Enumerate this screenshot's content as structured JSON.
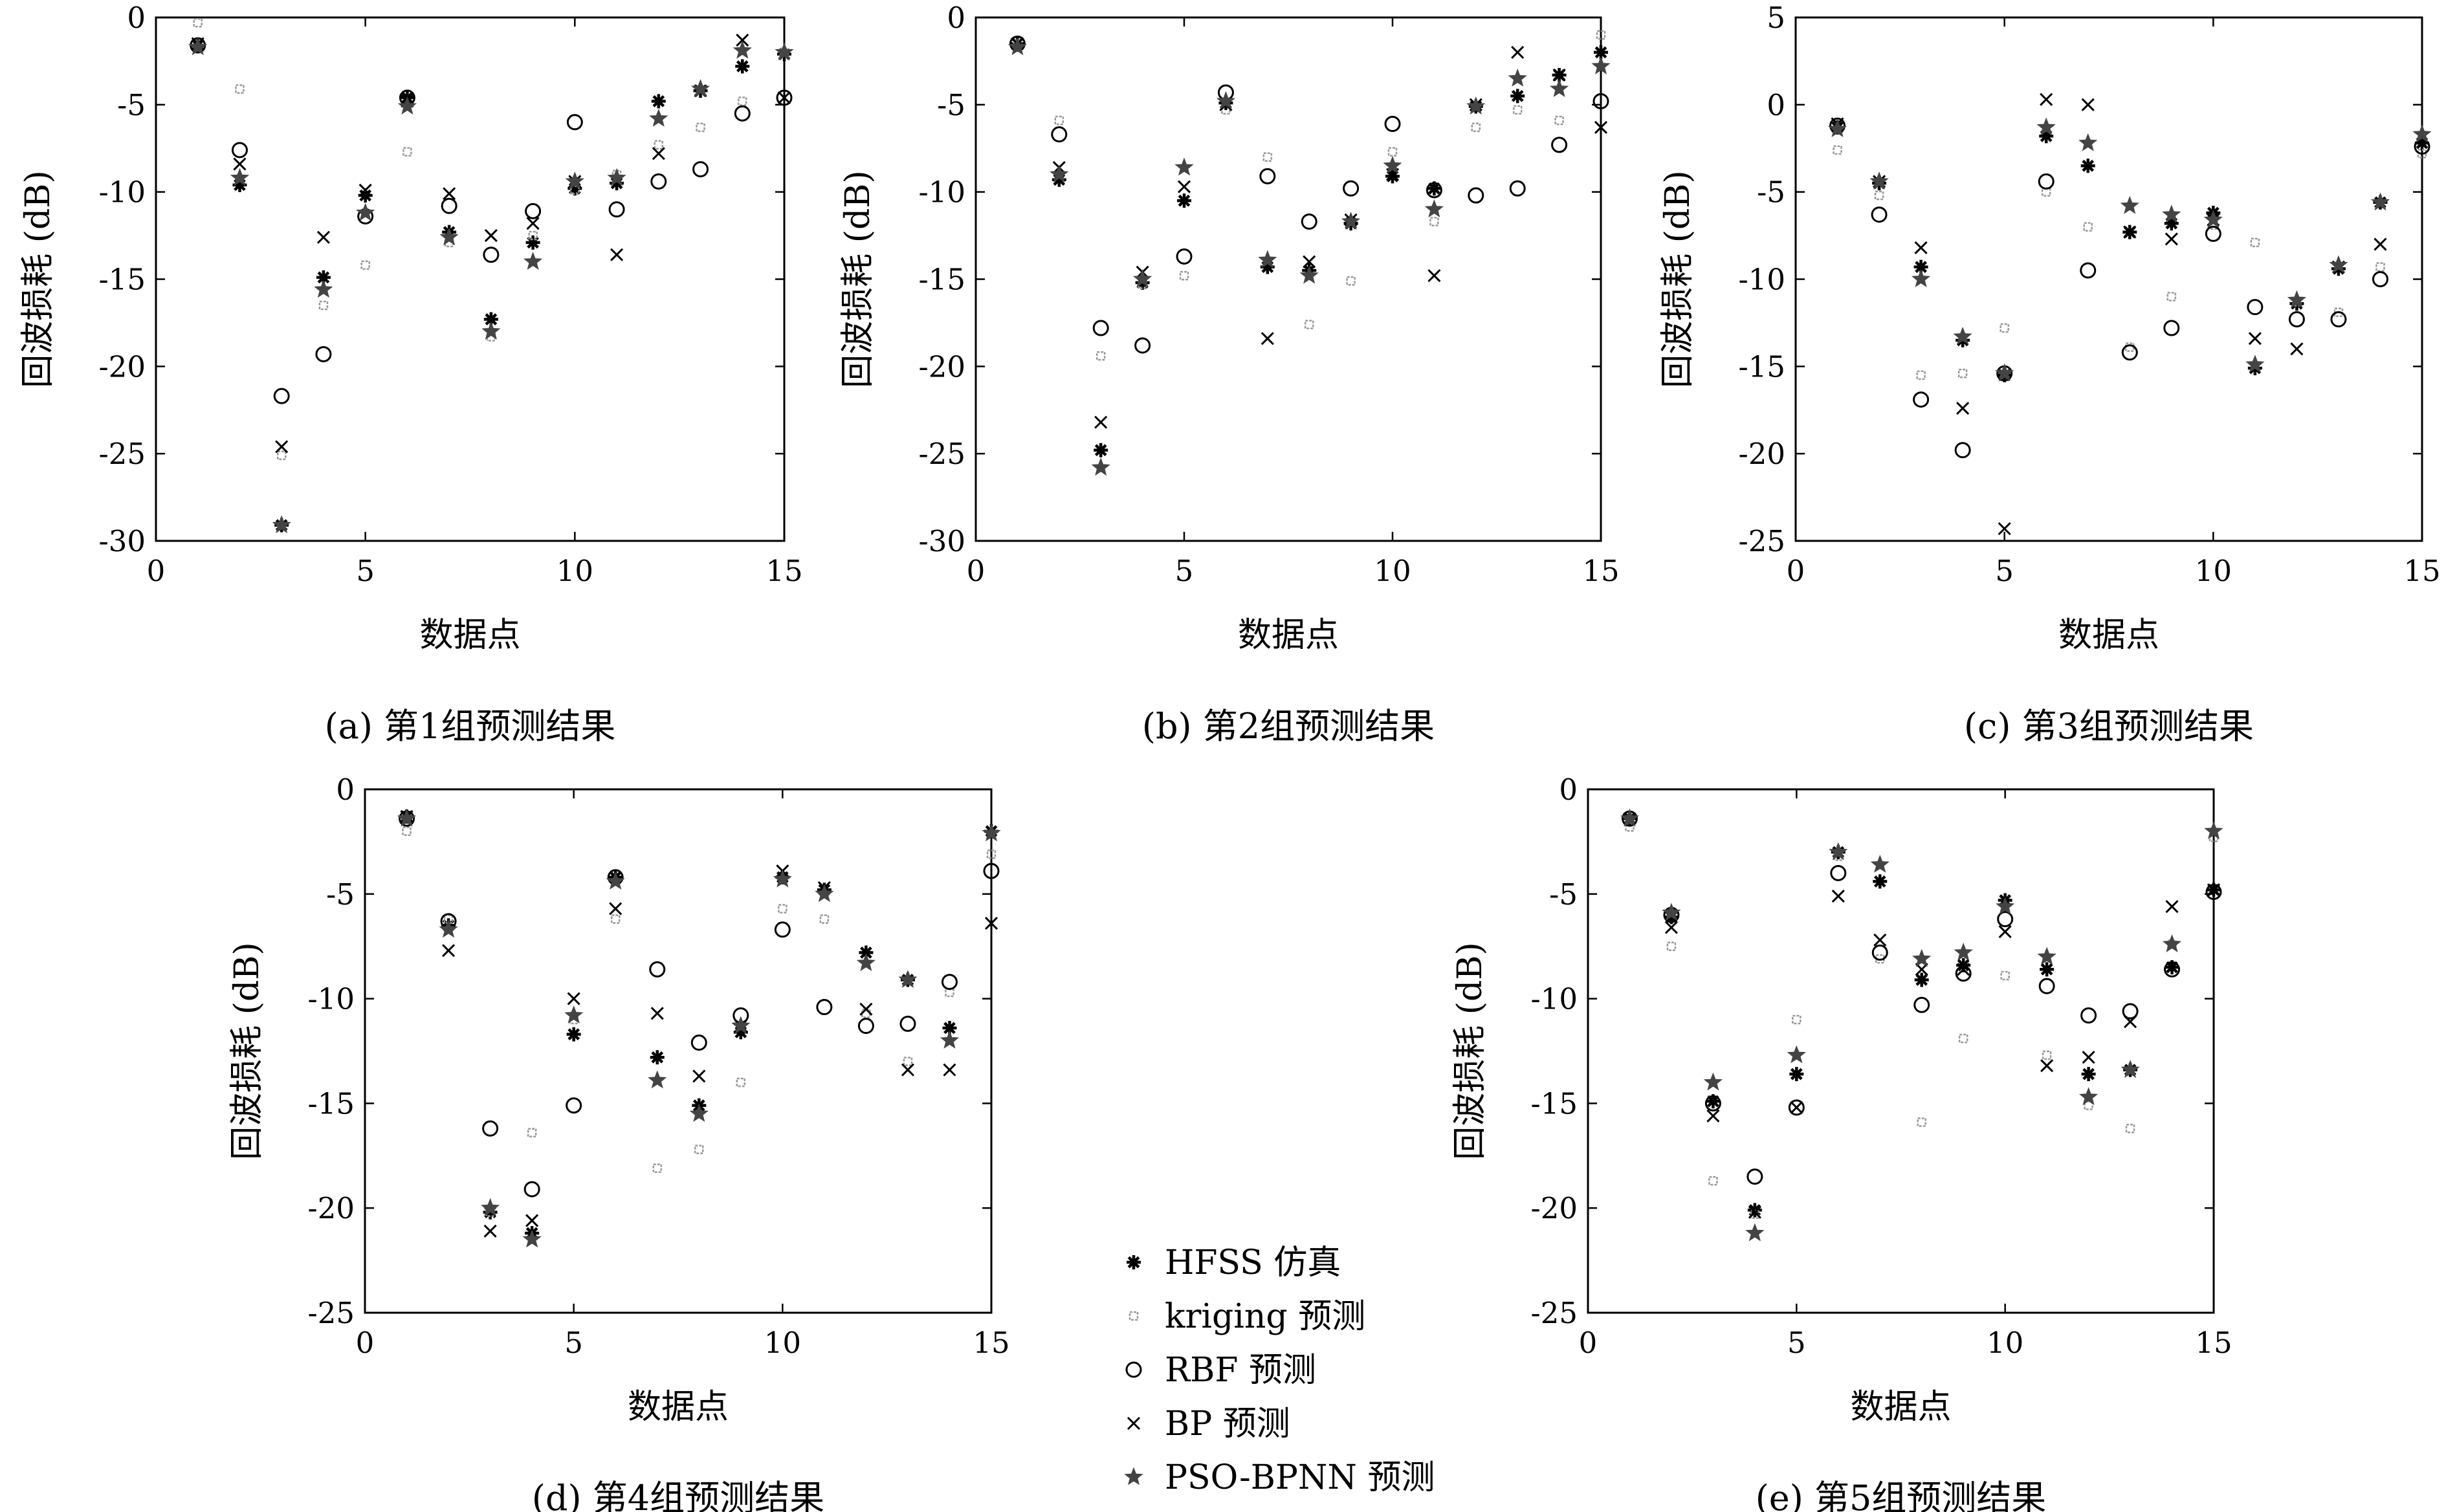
{
  "chart_data": [
    {
      "type": "scatter",
      "caption": "(a) 第1组预测结果",
      "xlabel": "数据点",
      "ylabel": "回波损耗 (dB)",
      "xlim": [
        0,
        15
      ],
      "ylim": [
        -30,
        0
      ],
      "xticks": [
        "0",
        "5",
        "10",
        "15"
      ],
      "yticks": [
        "-30",
        "-25",
        "-20",
        "-15",
        "-10",
        "-5",
        "0"
      ],
      "series": [
        {
          "name": "HFSS 仿真",
          "x": [
            1,
            2,
            3,
            4,
            5,
            6,
            7,
            8,
            9,
            10,
            11,
            12,
            13,
            14,
            15
          ],
          "y": [
            -1.6,
            -9.6,
            -29.1,
            -14.9,
            -10.2,
            -4.6,
            -12.3,
            -17.3,
            -12.9,
            -9.8,
            -9.5,
            -4.8,
            -4.2,
            -2.8,
            -2.1
          ]
        },
        {
          "name": "kriging 预测",
          "x": [
            1,
            2,
            3,
            4,
            5,
            6,
            7,
            8,
            9,
            10,
            11,
            12,
            13,
            14,
            15
          ],
          "y": [
            -0.3,
            -4.1,
            -25.1,
            -16.5,
            -14.2,
            -7.7,
            -12.9,
            -18.3,
            -12.5,
            -9.9,
            -9.0,
            -7.3,
            -6.3,
            -4.8,
            -2.0
          ]
        },
        {
          "name": "RBF 预测",
          "x": [
            1,
            2,
            3,
            4,
            5,
            6,
            7,
            8,
            9,
            10,
            11,
            12,
            13,
            14,
            15
          ],
          "y": [
            -1.6,
            -7.6,
            -21.7,
            -19.3,
            -11.4,
            -4.6,
            -10.8,
            -13.6,
            -11.1,
            -6.0,
            -11.0,
            -9.4,
            -8.7,
            -5.5,
            -4.6
          ]
        },
        {
          "name": "BP 预测",
          "x": [
            1,
            2,
            3,
            4,
            5,
            6,
            7,
            8,
            9,
            10,
            11,
            12,
            13,
            14,
            15
          ],
          "y": [
            -1.5,
            -8.4,
            -24.6,
            -12.6,
            -9.9,
            -4.8,
            -10.1,
            -12.5,
            -11.8,
            -9.4,
            -13.6,
            -7.8,
            -4.2,
            -1.3,
            -4.6
          ]
        },
        {
          "name": "PSO-BPNN 预测",
          "x": [
            1,
            2,
            3,
            4,
            5,
            6,
            7,
            8,
            9,
            10,
            11,
            12,
            13,
            14,
            15
          ],
          "y": [
            -1.7,
            -9.2,
            -29.1,
            -15.6,
            -11.2,
            -5.1,
            -12.6,
            -18.0,
            -14.0,
            -9.4,
            -9.2,
            -5.8,
            -4.1,
            -1.9,
            -2.0
          ]
        }
      ]
    },
    {
      "type": "scatter",
      "caption": "(b) 第2组预测结果",
      "xlabel": "数据点",
      "ylabel": "回波损耗 (dB)",
      "xlim": [
        0,
        15
      ],
      "ylim": [
        -30,
        0
      ],
      "xticks": [
        "0",
        "5",
        "10",
        "15"
      ],
      "yticks": [
        "-30",
        "-25",
        "-20",
        "-15",
        "-10",
        "-5",
        "0"
      ],
      "series": [
        {
          "name": "HFSS 仿真",
          "x": [
            1,
            2,
            3,
            4,
            5,
            6,
            7,
            8,
            9,
            10,
            11,
            12,
            13,
            14,
            15
          ],
          "y": [
            -1.5,
            -9.3,
            -24.8,
            -15.2,
            -10.5,
            -4.9,
            -14.3,
            -14.5,
            -11.8,
            -9.1,
            -9.8,
            -5.1,
            -4.5,
            -3.3,
            -2.0
          ]
        },
        {
          "name": "kriging 预测",
          "x": [
            1,
            2,
            3,
            4,
            5,
            6,
            7,
            8,
            9,
            10,
            11,
            12,
            13,
            14,
            15
          ],
          "y": [
            -1.5,
            -5.9,
            -19.4,
            -15.3,
            -14.8,
            -5.3,
            -8.0,
            -17.6,
            -15.1,
            -7.7,
            -11.7,
            -6.3,
            -5.3,
            -5.9,
            -1.0
          ]
        },
        {
          "name": "RBF 预测",
          "x": [
            1,
            2,
            3,
            4,
            5,
            6,
            7,
            8,
            9,
            10,
            11,
            12,
            13,
            14,
            15
          ],
          "y": [
            -1.5,
            -6.7,
            -17.8,
            -18.8,
            -13.7,
            -4.3,
            -9.1,
            -11.7,
            -9.8,
            -6.1,
            -9.9,
            -10.2,
            -9.8,
            -7.3,
            -4.8
          ]
        },
        {
          "name": "BP 预测",
          "x": [
            1,
            2,
            3,
            4,
            5,
            6,
            7,
            8,
            9,
            10,
            11,
            12,
            13,
            14,
            15
          ],
          "y": [
            -1.5,
            -8.6,
            -23.2,
            -14.6,
            -9.7,
            -5.0,
            -18.4,
            -14.0,
            -11.6,
            -9.0,
            -14.8,
            -5.0,
            -2.0,
            -3.3,
            -6.3
          ]
        },
        {
          "name": "PSO-BPNN 预测",
          "x": [
            1,
            2,
            3,
            4,
            5,
            6,
            7,
            8,
            9,
            10,
            11,
            12,
            13,
            14,
            15
          ],
          "y": [
            -1.7,
            -9.0,
            -25.8,
            -15.0,
            -8.6,
            -4.8,
            -13.9,
            -14.8,
            -11.7,
            -8.5,
            -11.0,
            -5.1,
            -3.5,
            -4.1,
            -2.8
          ]
        }
      ]
    },
    {
      "type": "scatter",
      "caption": "(c) 第3组预测结果",
      "xlabel": "数据点",
      "ylabel": "回波损耗 (dB)",
      "xlim": [
        0,
        15
      ],
      "ylim": [
        -25,
        5
      ],
      "xticks": [
        "0",
        "5",
        "10",
        "15"
      ],
      "yticks": [
        "-25",
        "-20",
        "-15",
        "-10",
        "-5",
        "0",
        "5"
      ],
      "series": [
        {
          "name": "HFSS 仿真",
          "x": [
            1,
            2,
            3,
            4,
            5,
            6,
            7,
            8,
            9,
            10,
            11,
            12,
            13,
            14,
            15
          ],
          "y": [
            -1.3,
            -4.5,
            -9.3,
            -13.5,
            -15.5,
            -1.8,
            -3.5,
            -7.3,
            -6.8,
            -6.2,
            -15.1,
            -11.4,
            -9.4,
            -5.6,
            -2.2
          ]
        },
        {
          "name": "kriging 预测",
          "x": [
            1,
            2,
            3,
            4,
            5,
            6,
            7,
            8,
            9,
            10,
            11,
            12,
            13,
            14,
            15
          ],
          "y": [
            -2.6,
            -5.2,
            -15.5,
            -15.4,
            -12.8,
            -5.0,
            -7.0,
            -13.9,
            -11.0,
            -6.9,
            -7.9,
            -11.3,
            -11.9,
            -9.3,
            -2.8
          ]
        },
        {
          "name": "RBF 预测",
          "x": [
            1,
            2,
            3,
            4,
            5,
            6,
            7,
            8,
            9,
            10,
            11,
            12,
            13,
            14,
            15
          ],
          "y": [
            -1.2,
            -6.3,
            -16.9,
            -19.8,
            -15.4,
            -4.4,
            -9.5,
            -14.2,
            -12.8,
            -7.4,
            -11.6,
            -12.3,
            -12.3,
            -10.0,
            -2.4
          ]
        },
        {
          "name": "BP 预测",
          "x": [
            1,
            2,
            3,
            4,
            5,
            6,
            7,
            8,
            9,
            10,
            11,
            12,
            13,
            14,
            15
          ],
          "y": [
            -1.1,
            -4.4,
            -8.2,
            -17.4,
            -24.3,
            0.3,
            0.0,
            -7.3,
            -7.7,
            -6.6,
            -13.4,
            -14.0,
            -9.3,
            -8.0,
            -1.9
          ]
        },
        {
          "name": "PSO-BPNN 预测",
          "x": [
            1,
            2,
            3,
            4,
            5,
            6,
            7,
            8,
            9,
            10,
            11,
            12,
            13,
            14,
            15
          ],
          "y": [
            -1.4,
            -4.4,
            -10.0,
            -13.3,
            -15.4,
            -1.3,
            -2.2,
            -5.8,
            -6.3,
            -6.6,
            -14.9,
            -11.2,
            -9.2,
            -5.6,
            -1.7
          ]
        }
      ]
    },
    {
      "type": "scatter",
      "caption": "(d) 第4组预测结果",
      "xlabel": "数据点",
      "ylabel": "回波损耗 (dB)",
      "xlim": [
        0,
        15
      ],
      "ylim": [
        -25,
        0
      ],
      "xticks": [
        "0",
        "5",
        "10",
        "15"
      ],
      "yticks": [
        "-25",
        "-20",
        "-15",
        "-10",
        "-5",
        "0"
      ],
      "series": [
        {
          "name": "HFSS 仿真",
          "x": [
            1,
            2,
            3,
            4,
            5,
            6,
            7,
            8,
            9,
            10,
            11,
            12,
            13,
            14,
            15
          ],
          "y": [
            -1.3,
            -6.5,
            -20.2,
            -21.2,
            -11.7,
            -4.2,
            -12.8,
            -15.1,
            -11.6,
            -4.2,
            -4.8,
            -7.8,
            -9.1,
            -11.4,
            -2.0
          ]
        },
        {
          "name": "kriging 预测",
          "x": [
            1,
            2,
            3,
            4,
            5,
            6,
            7,
            8,
            9,
            10,
            11,
            12,
            13,
            14,
            15
          ],
          "y": [
            -2.0,
            -6.2,
            -20.2,
            -16.4,
            -11.0,
            -6.2,
            -18.1,
            -17.2,
            -14.0,
            -5.7,
            -6.2,
            -10.7,
            -13.0,
            -9.7,
            -3.1
          ]
        },
        {
          "name": "RBF 预测",
          "x": [
            1,
            2,
            3,
            4,
            5,
            6,
            7,
            8,
            9,
            10,
            11,
            12,
            13,
            14,
            15
          ],
          "y": [
            -1.4,
            -6.3,
            -16.2,
            -19.1,
            -15.1,
            -4.2,
            -8.6,
            -12.1,
            -10.8,
            -6.7,
            -10.4,
            -11.3,
            -11.2,
            -9.2,
            -3.9
          ]
        },
        {
          "name": "BP 预测",
          "x": [
            1,
            2,
            3,
            4,
            5,
            6,
            7,
            8,
            9,
            10,
            11,
            12,
            13,
            14,
            15
          ],
          "y": [
            -1.3,
            -7.7,
            -21.1,
            -20.6,
            -10.0,
            -5.7,
            -10.7,
            -13.7,
            -11.3,
            -3.9,
            -4.7,
            -10.5,
            -13.4,
            -13.4,
            -6.4
          ]
        },
        {
          "name": "PSO-BPNN 预测",
          "x": [
            1,
            2,
            3,
            4,
            5,
            6,
            7,
            8,
            9,
            10,
            11,
            12,
            13,
            14,
            15
          ],
          "y": [
            -1.4,
            -6.7,
            -20.0,
            -21.5,
            -10.8,
            -4.4,
            -13.9,
            -15.5,
            -11.3,
            -4.3,
            -5.0,
            -8.3,
            -9.1,
            -12.0,
            -2.1
          ]
        }
      ]
    },
    {
      "type": "scatter",
      "caption": "(e) 第5组预测结果",
      "xlabel": "数据点",
      "ylabel": "回波损耗 (dB)",
      "xlim": [
        0,
        15
      ],
      "ylim": [
        -25,
        0
      ],
      "xticks": [
        "0",
        "5",
        "10",
        "15"
      ],
      "yticks": [
        "-25",
        "-20",
        "-15",
        "-10",
        "-5",
        "0"
      ],
      "series": [
        {
          "name": "HFSS 仿真",
          "x": [
            1,
            2,
            3,
            4,
            5,
            6,
            7,
            8,
            9,
            10,
            11,
            12,
            13,
            14,
            15
          ],
          "y": [
            -1.4,
            -6.1,
            -14.9,
            -20.1,
            -13.6,
            -3.0,
            -4.4,
            -9.1,
            -8.4,
            -5.3,
            -8.6,
            -13.6,
            -13.4,
            -8.5,
            -4.8
          ]
        },
        {
          "name": "kriging 预测",
          "x": [
            1,
            2,
            3,
            4,
            5,
            6,
            7,
            8,
            9,
            10,
            11,
            12,
            13,
            14,
            15
          ],
          "y": [
            -1.8,
            -7.5,
            -18.7,
            -20.3,
            -11.0,
            -3.2,
            -8.1,
            -15.9,
            -11.9,
            -8.9,
            -12.7,
            -15.1,
            -16.2,
            -7.4,
            -2.3
          ]
        },
        {
          "name": "RBF 预测",
          "x": [
            1,
            2,
            3,
            4,
            5,
            6,
            7,
            8,
            9,
            10,
            11,
            12,
            13,
            14,
            15
          ],
          "y": [
            -1.4,
            -6.0,
            -15.0,
            -18.5,
            -15.2,
            -4.0,
            -7.8,
            -10.3,
            -8.8,
            -6.2,
            -9.4,
            -10.8,
            -10.6,
            -8.6,
            -4.9
          ]
        },
        {
          "name": "BP 预测",
          "x": [
            1,
            2,
            3,
            4,
            5,
            6,
            7,
            8,
            9,
            10,
            11,
            12,
            13,
            14,
            15
          ],
          "y": [
            -1.4,
            -6.6,
            -15.6,
            -20.2,
            -15.2,
            -5.1,
            -7.2,
            -8.6,
            -8.6,
            -6.8,
            -13.2,
            -12.8,
            -11.1,
            -5.6,
            -4.8
          ]
        },
        {
          "name": "PSO-BPNN 预测",
          "x": [
            1,
            2,
            3,
            4,
            5,
            6,
            7,
            8,
            9,
            10,
            11,
            12,
            13,
            14,
            15
          ],
          "y": [
            -1.4,
            -5.9,
            -14.0,
            -21.2,
            -12.7,
            -3.0,
            -3.6,
            -8.1,
            -7.8,
            -5.6,
            -8.0,
            -14.7,
            -13.4,
            -7.4,
            -2.0
          ]
        }
      ]
    }
  ],
  "legend": {
    "placement": "bottom-center",
    "items": [
      {
        "label": "HFSS 仿真",
        "marker": "asterisk",
        "color": "#000000"
      },
      {
        "label": "kriging 预测",
        "marker": "square",
        "color": "#999999"
      },
      {
        "label": "RBF 预测",
        "marker": "circle",
        "color": "#000000"
      },
      {
        "label": "BP 预测",
        "marker": "cross",
        "color": "#000000"
      },
      {
        "label": "PSO-BPNN 预测",
        "marker": "star",
        "color": "#444444"
      }
    ]
  }
}
